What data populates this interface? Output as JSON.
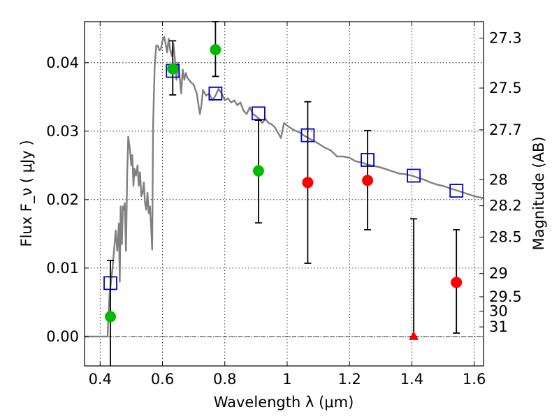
{
  "chart_data": {
    "type": "scatter",
    "xlabel": "Wavelength  λ (μm)",
    "ylabel": "Flux  F_ν  ( μJy )",
    "ylabel_right": "Magnitude (AB)",
    "xlim": [
      0.35,
      1.63
    ],
    "ylim": [
      -0.0043,
      0.046
    ],
    "x_ticks": [
      0.4,
      0.6,
      0.8,
      1.0,
      1.2,
      1.4,
      1.6
    ],
    "x_tick_labels": [
      "0.4",
      "0.6",
      "0.8",
      "1",
      "1.2",
      "1.4",
      "1.6"
    ],
    "y_ticks": [
      0.0,
      0.01,
      0.02,
      0.03,
      0.04
    ],
    "y_tick_labels": [
      "0.00",
      "0.01",
      "0.02",
      "0.03",
      "0.04"
    ],
    "right_ticks": [
      {
        "flux": 0.0436,
        "label": "27.3"
      },
      {
        "flux": 0.0363,
        "label": "27.5"
      },
      {
        "flux": 0.0302,
        "label": "27.7"
      },
      {
        "flux": 0.0229,
        "label": "28"
      },
      {
        "flux": 0.0191,
        "label": "28.2"
      },
      {
        "flux": 0.0145,
        "label": "28.5"
      },
      {
        "flux": 0.0092,
        "label": "29"
      },
      {
        "flux": 0.0058,
        "label": "29.5"
      },
      {
        "flux": 0.0037,
        "label": "30"
      },
      {
        "flux": 0.0014,
        "label": "31"
      }
    ],
    "grid": true,
    "zero_line": true,
    "series": [
      {
        "kind": "line",
        "color": "#808080",
        "points": [
          [
            0.35,
            0.0
          ],
          [
            0.424,
            0.0
          ],
          [
            0.425,
            0.0015
          ],
          [
            0.43,
            0.006
          ],
          [
            0.44,
            0.01
          ],
          [
            0.45,
            0.0155
          ],
          [
            0.455,
            0.0125
          ],
          [
            0.46,
            0.0165
          ],
          [
            0.463,
            0.008
          ],
          [
            0.466,
            0.019
          ],
          [
            0.47,
            0.0135
          ],
          [
            0.473,
            0.019
          ],
          [
            0.476,
            0.0185
          ],
          [
            0.479,
            0.0195
          ],
          [
            0.483,
            0.0125
          ],
          [
            0.487,
            0.024
          ],
          [
            0.49,
            0.0292
          ],
          [
            0.495,
            0.0275
          ],
          [
            0.5,
            0.025
          ],
          [
            0.503,
            0.0265
          ],
          [
            0.507,
            0.022
          ],
          [
            0.51,
            0.0245
          ],
          [
            0.515,
            0.0235
          ],
          [
            0.52,
            0.025
          ],
          [
            0.524,
            0.022
          ],
          [
            0.528,
            0.024
          ],
          [
            0.532,
            0.0205
          ],
          [
            0.536,
            0.021
          ],
          [
            0.54,
            0.0225
          ],
          [
            0.544,
            0.0195
          ],
          [
            0.548,
            0.0185
          ],
          [
            0.552,
            0.021
          ],
          [
            0.556,
            0.018
          ],
          [
            0.56,
            0.019
          ],
          [
            0.564,
            0.0155
          ],
          [
            0.567,
            0.0127
          ],
          [
            0.57,
            0.031
          ],
          [
            0.575,
            0.0395
          ],
          [
            0.58,
            0.0425
          ],
          [
            0.585,
            0.0425
          ],
          [
            0.59,
            0.0418
          ],
          [
            0.595,
            0.042
          ],
          [
            0.6,
            0.0432
          ],
          [
            0.605,
            0.0438
          ],
          [
            0.61,
            0.0428
          ],
          [
            0.615,
            0.0415
          ],
          [
            0.62,
            0.0435
          ],
          [
            0.625,
            0.0418
          ],
          [
            0.63,
            0.041
          ],
          [
            0.635,
            0.0428
          ],
          [
            0.64,
            0.0405
          ],
          [
            0.645,
            0.0375
          ],
          [
            0.65,
            0.04
          ],
          [
            0.655,
            0.038
          ],
          [
            0.66,
            0.0355
          ],
          [
            0.665,
            0.039
          ],
          [
            0.67,
            0.0375
          ],
          [
            0.675,
            0.0385
          ],
          [
            0.68,
            0.0378
          ],
          [
            0.69,
            0.0372
          ],
          [
            0.7,
            0.0368
          ],
          [
            0.71,
            0.0355
          ],
          [
            0.715,
            0.034
          ],
          [
            0.72,
            0.0325
          ],
          [
            0.725,
            0.0338
          ],
          [
            0.73,
            0.036
          ],
          [
            0.74,
            0.0352
          ],
          [
            0.75,
            0.0355
          ],
          [
            0.76,
            0.0345
          ],
          [
            0.77,
            0.0352
          ],
          [
            0.78,
            0.0362
          ],
          [
            0.79,
            0.0355
          ],
          [
            0.8,
            0.0345
          ],
          [
            0.81,
            0.0348
          ],
          [
            0.82,
            0.0342
          ],
          [
            0.83,
            0.0345
          ],
          [
            0.84,
            0.0338
          ],
          [
            0.85,
            0.0342
          ],
          [
            0.86,
            0.033
          ],
          [
            0.87,
            0.0325
          ],
          [
            0.88,
            0.0335
          ],
          [
            0.89,
            0.0325
          ],
          [
            0.9,
            0.0322
          ],
          [
            0.91,
            0.0318
          ],
          [
            0.92,
            0.0312
          ],
          [
            0.93,
            0.0318
          ],
          [
            0.94,
            0.0312
          ],
          [
            0.95,
            0.031
          ],
          [
            0.96,
            0.0306
          ],
          [
            0.97,
            0.0298
          ],
          [
            0.98,
            0.029
          ],
          [
            0.99,
            0.0312
          ],
          [
            1.0,
            0.0308
          ],
          [
            1.01,
            0.0305
          ],
          [
            1.02,
            0.0302
          ],
          [
            1.04,
            0.0298
          ],
          [
            1.06,
            0.0292
          ],
          [
            1.08,
            0.0287
          ],
          [
            1.1,
            0.0282
          ],
          [
            1.12,
            0.0276
          ],
          [
            1.14,
            0.0272
          ],
          [
            1.16,
            0.0263
          ],
          [
            1.18,
            0.0263
          ],
          [
            1.2,
            0.0261
          ],
          [
            1.22,
            0.0256
          ],
          [
            1.24,
            0.0254
          ],
          [
            1.26,
            0.0251
          ],
          [
            1.28,
            0.0249
          ],
          [
            1.3,
            0.0247
          ],
          [
            1.32,
            0.0244
          ],
          [
            1.34,
            0.0241
          ],
          [
            1.36,
            0.0238
          ],
          [
            1.38,
            0.0237
          ],
          [
            1.4,
            0.0235
          ],
          [
            1.42,
            0.0232
          ],
          [
            1.44,
            0.0229
          ],
          [
            1.46,
            0.0225
          ],
          [
            1.48,
            0.0222
          ],
          [
            1.5,
            0.022
          ],
          [
            1.52,
            0.0217
          ],
          [
            1.54,
            0.0214
          ],
          [
            1.56,
            0.0211
          ],
          [
            1.58,
            0.0208
          ],
          [
            1.6,
            0.0205
          ],
          [
            1.63,
            0.0202
          ]
        ]
      },
      {
        "kind": "open-square",
        "color": "#0000cc",
        "points": [
          [
            0.433,
            0.0078
          ],
          [
            0.633,
            0.0388
          ],
          [
            0.77,
            0.0355
          ],
          [
            0.908,
            0.0326
          ],
          [
            1.066,
            0.0294
          ],
          [
            1.258,
            0.0258
          ],
          [
            1.406,
            0.0235
          ],
          [
            1.543,
            0.0213
          ]
        ]
      },
      {
        "kind": "errorbar",
        "color": "#000000",
        "points": [
          {
            "x": 0.433,
            "lo": -0.0045,
            "hi": 0.0111
          },
          {
            "x": 0.633,
            "lo": 0.0353,
            "hi": 0.0432
          },
          {
            "x": 0.77,
            "lo": 0.038,
            "hi": 0.046
          },
          {
            "x": 0.908,
            "lo": 0.0166,
            "hi": 0.0316
          },
          {
            "x": 1.066,
            "lo": 0.0107,
            "hi": 0.0343
          },
          {
            "x": 1.258,
            "lo": 0.0156,
            "hi": 0.0301
          },
          {
            "x": 1.406,
            "lo": 0.0,
            "hi": 0.0172
          },
          {
            "x": 1.543,
            "lo": 0.0005,
            "hi": 0.0156
          }
        ]
      },
      {
        "kind": "filled-circle",
        "color": "#00bb00",
        "points": [
          [
            0.433,
            0.0029
          ],
          [
            0.633,
            0.0391
          ],
          [
            0.77,
            0.0419
          ],
          [
            0.908,
            0.0242
          ]
        ]
      },
      {
        "kind": "filled-circle",
        "color": "#ff0000",
        "points": [
          [
            1.066,
            0.0225
          ],
          [
            1.258,
            0.0228
          ],
          [
            1.543,
            0.0079
          ]
        ]
      },
      {
        "kind": "triangle",
        "color": "#ff0000",
        "points": [
          [
            1.406,
            0.0
          ]
        ]
      }
    ]
  }
}
